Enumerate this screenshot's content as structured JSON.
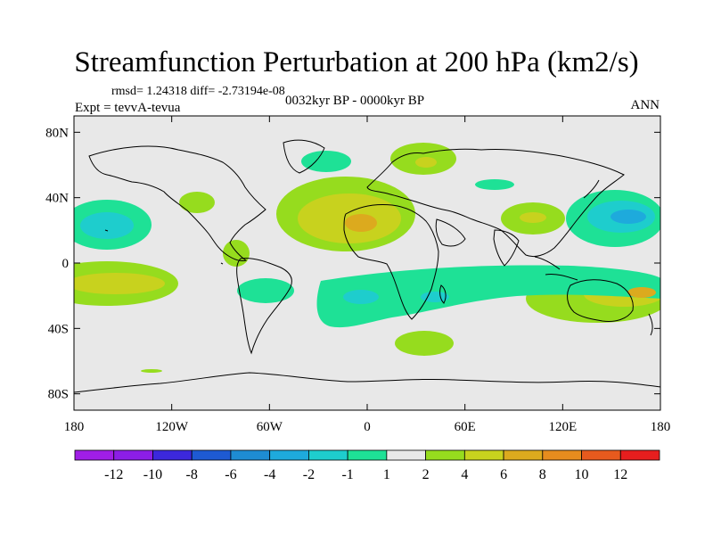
{
  "title": "Streamfunction Perturbation at 200 hPa (km2/s)",
  "stats": "rmsd= 1.24318 diff= -2.73194e-08",
  "expt": "Expt = tevvA-tevua",
  "period": "0032kyr BP - 0000kyr BP",
  "season": "ANN",
  "map": {
    "lat_ticks": [
      "80N",
      "40N",
      "0",
      "40S",
      "80S"
    ],
    "lon_ticks": [
      "180",
      "120W",
      "60W",
      "0",
      "60E",
      "120E",
      "180"
    ],
    "background_color": "#e8e8e8"
  },
  "colorbar": {
    "labels": [
      "-12",
      "-10",
      "-8",
      "-6",
      "-4",
      "-2",
      "-1",
      "1",
      "2",
      "4",
      "6",
      "8",
      "10",
      "12"
    ],
    "colors": [
      "#8c1ee6",
      "#3c28dc",
      "#1e5ad2",
      "#1e8cd2",
      "#1eaadc",
      "#1ecdcd",
      "#1ee196",
      "#e8e8e8",
      "#96dc1e",
      "#c8d21e",
      "#dcaa1e",
      "#e68c1e",
      "#e65a1e",
      "#e61e1e"
    ]
  }
}
